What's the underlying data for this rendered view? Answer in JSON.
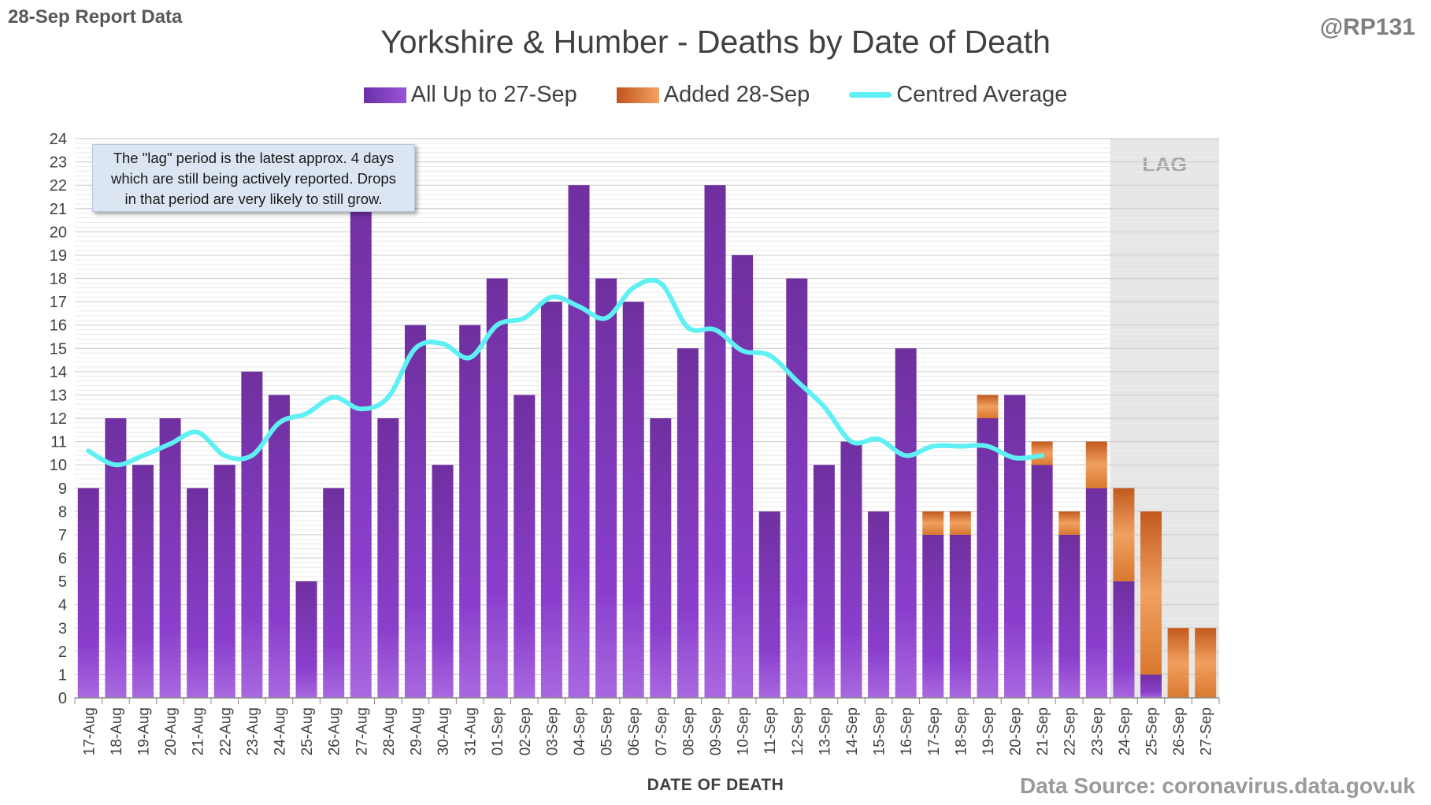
{
  "report_label": "28-Sep Report Data",
  "author": "@RP131",
  "annotation": {
    "lines": [
      "The \"lag\" period is the latest approx. 4 days",
      "which are still being actively reported.  Drops",
      "in that period are very likely to still grow."
    ]
  },
  "source": "Data Source: coronavirus.data.gov.uk",
  "colors": {
    "all": "#7b3fbf",
    "added": "#e07c3a",
    "average": "#5ef0f4",
    "lag_shade": "#e6e6e6"
  },
  "chart_data": {
    "type": "bar",
    "stacked": true,
    "title": "Yorkshire & Humber - Deaths by Date of Death",
    "xlabel": "DATE OF DEATH",
    "ylabel": "",
    "ylim": [
      0,
      24
    ],
    "y_ticks": [
      0,
      1,
      2,
      3,
      4,
      5,
      6,
      7,
      8,
      9,
      10,
      11,
      12,
      13,
      14,
      15,
      16,
      17,
      18,
      19,
      20,
      21,
      22,
      23,
      24
    ],
    "grid": true,
    "legend_position": "top",
    "lag_label": "LAG",
    "lag_categories": [
      "24-Sep",
      "25-Sep",
      "26-Sep",
      "27-Sep"
    ],
    "categories": [
      "17-Aug",
      "18-Aug",
      "19-Aug",
      "20-Aug",
      "21-Aug",
      "22-Aug",
      "23-Aug",
      "24-Aug",
      "25-Aug",
      "26-Aug",
      "27-Aug",
      "28-Aug",
      "29-Aug",
      "30-Aug",
      "31-Aug",
      "01-Sep",
      "02-Sep",
      "03-Sep",
      "04-Sep",
      "05-Sep",
      "06-Sep",
      "07-Sep",
      "08-Sep",
      "09-Sep",
      "10-Sep",
      "11-Sep",
      "12-Sep",
      "13-Sep",
      "14-Sep",
      "15-Sep",
      "16-Sep",
      "17-Sep",
      "18-Sep",
      "19-Sep",
      "20-Sep",
      "21-Sep",
      "22-Sep",
      "23-Sep",
      "24-Sep",
      "25-Sep",
      "26-Sep",
      "27-Sep"
    ],
    "series": [
      {
        "name": "All Up to 27-Sep",
        "values": [
          9,
          12,
          10,
          12,
          9,
          10,
          14,
          13,
          5,
          9,
          22,
          12,
          16,
          10,
          16,
          18,
          13,
          17,
          22,
          18,
          17,
          12,
          15,
          22,
          19,
          8,
          18,
          10,
          11,
          8,
          15,
          7,
          7,
          12,
          13,
          10,
          7,
          9,
          5,
          1,
          0,
          0
        ]
      },
      {
        "name": "Added 28-Sep",
        "values": [
          0,
          0,
          0,
          0,
          0,
          0,
          0,
          0,
          0,
          0,
          0,
          0,
          0,
          0,
          0,
          0,
          0,
          0,
          0,
          0,
          0,
          0,
          0,
          0,
          0,
          0,
          0,
          0,
          0,
          0,
          0,
          1,
          1,
          1,
          0,
          1,
          1,
          2,
          4,
          7,
          3,
          3
        ]
      },
      {
        "name": "Centred Average",
        "type": "line",
        "values": [
          10.6,
          10.0,
          10.4,
          10.9,
          11.4,
          10.4,
          10.4,
          11.8,
          12.2,
          12.9,
          12.4,
          12.9,
          15.0,
          15.2,
          14.6,
          16.0,
          16.3,
          17.2,
          16.8,
          16.3,
          17.6,
          17.8,
          15.9,
          15.8,
          14.9,
          14.7,
          13.6,
          12.5,
          11.0,
          11.1,
          10.4,
          10.8,
          10.8,
          10.8,
          10.3,
          10.4,
          null,
          null,
          null,
          null,
          null,
          null
        ]
      }
    ]
  }
}
